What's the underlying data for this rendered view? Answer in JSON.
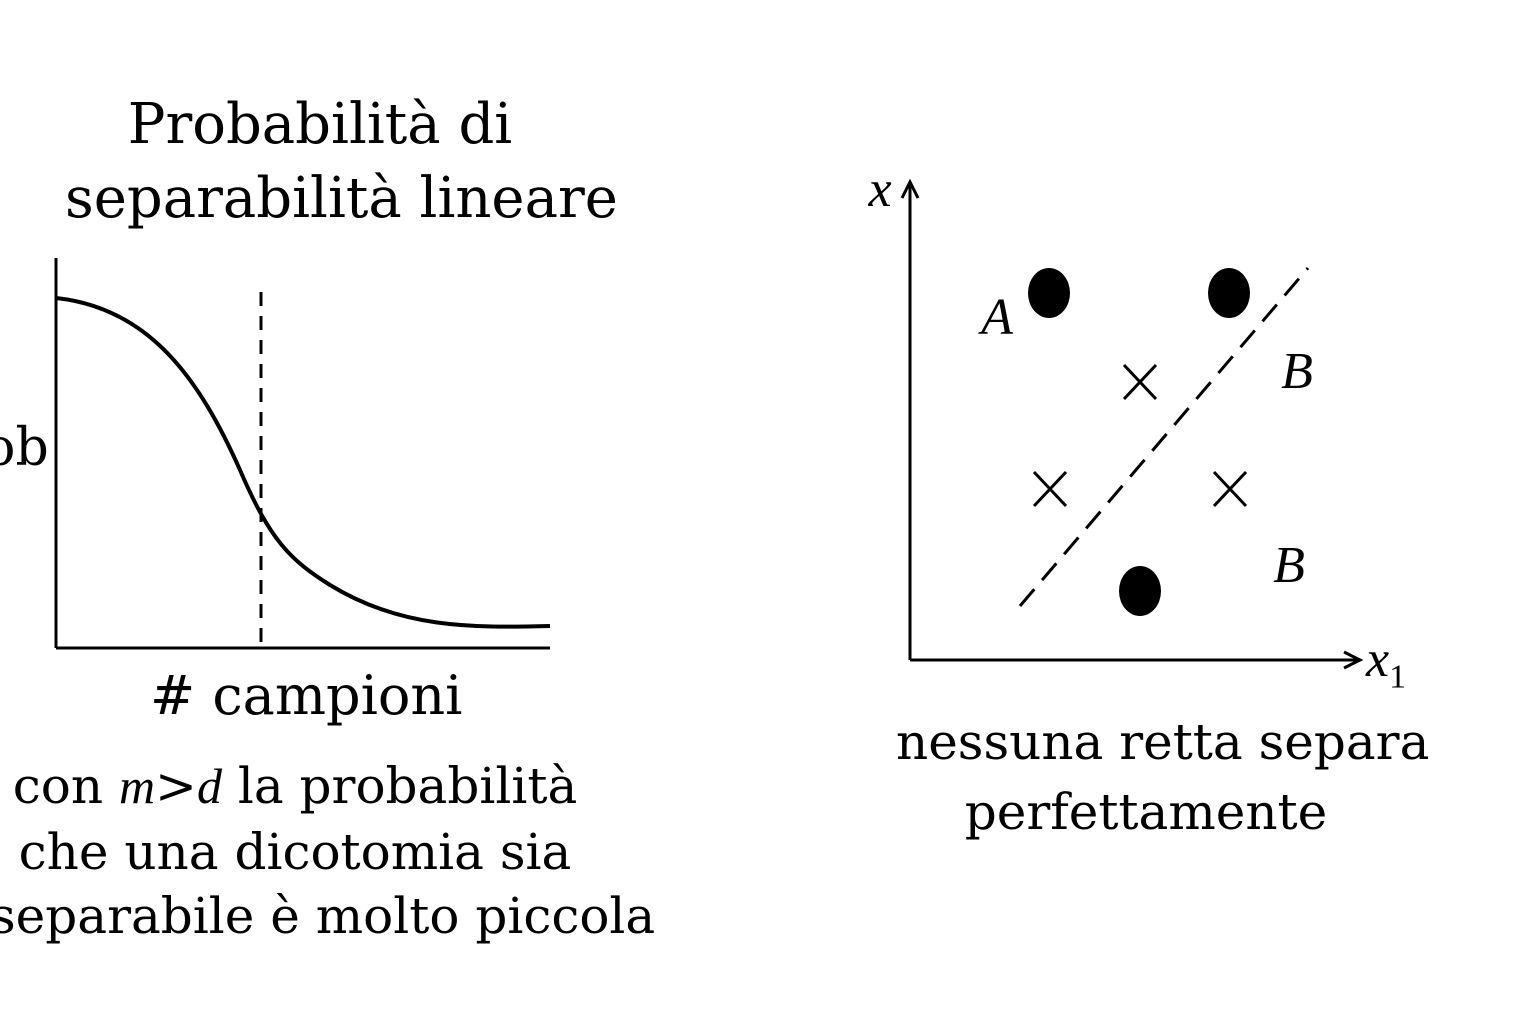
{
  "left_panel": {
    "title": [
      "Probabilità di",
      "separabilità lineare"
    ],
    "y_axis_label": "prob",
    "x_axis_label": "# campioni",
    "caption_prefix": "con ",
    "caption_math_m": "m",
    "caption_math_op": ">",
    "caption_math_d": "d",
    "caption_suffix": " la probabilità",
    "caption_lines": [
      "che una dicotomia sia",
      "separabile è molto piccola"
    ]
  },
  "right_panel": {
    "y_axis_label": "x",
    "x_axis_label": "x",
    "x_axis_subscript": "1",
    "label_a": "A",
    "label_b_upper": "B",
    "label_b_lower": "B",
    "caption_lines": [
      "nessuna retta separa",
      "perfettamente"
    ]
  }
}
